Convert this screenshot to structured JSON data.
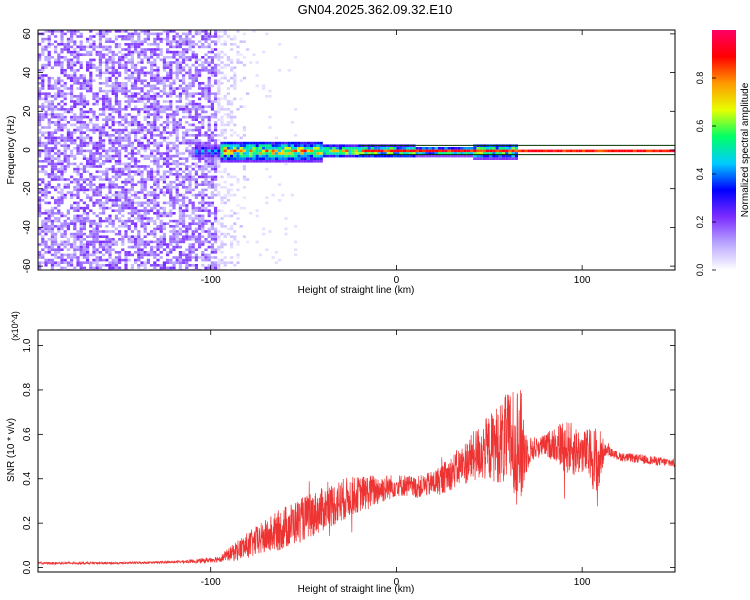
{
  "figure": {
    "title": "GN04.2025.362.09.32.E10"
  },
  "chart_data": [
    {
      "type": "heatmap",
      "name": "spectrogram",
      "xlabel": "Height of straight line (km)",
      "ylabel": "Frequency (Hz)",
      "xlim": [
        -193,
        150
      ],
      "ylim": [
        -62,
        62
      ],
      "xticks": [
        -100,
        0,
        100
      ],
      "yticks": [
        -60,
        -40,
        -20,
        0,
        20,
        40,
        60
      ],
      "colorbar": {
        "label": "Normalized spectral amplitude",
        "range": [
          0,
          1
        ],
        "ticks": [
          "0.0",
          "0.2",
          "0.4",
          "0.6",
          "0.8"
        ],
        "tick_values": [
          0.0,
          0.2,
          0.4,
          0.6,
          0.8
        ],
        "colormap": [
          "#ffffff",
          "#b9a6ff",
          "#7b2cff",
          "#0000ff",
          "#00ccff",
          "#00ff66",
          "#e6ff00",
          "#ff9900",
          "#ff0000",
          "#ff0066"
        ]
      },
      "regions": [
        {
          "description": "broadband noise",
          "x_range": [
            -193,
            -97
          ],
          "freq_range": [
            -62,
            62
          ],
          "level": 0.15
        },
        {
          "description": "fading noise",
          "x_range": [
            -97,
            -80
          ],
          "freq_range": [
            -62,
            62
          ],
          "level": 0.06
        },
        {
          "description": "signal band",
          "x_range": [
            -110,
            65
          ],
          "freq_range": [
            -5,
            5
          ],
          "level": 0.55
        },
        {
          "description": "narrow carrier line",
          "x_range": [
            -20,
            150
          ],
          "freq_range": [
            -1,
            1
          ],
          "level": 0.95
        }
      ]
    },
    {
      "type": "line",
      "name": "snr",
      "xlabel": "Height of straight line (km)",
      "ylabel": "SNR (10 * v/v)",
      "yscale_label": "(x10^4)",
      "xlim": [
        -193,
        150
      ],
      "ylim": [
        -0.02,
        1.07
      ],
      "xticks": [
        -100,
        0,
        100
      ],
      "yticks": [
        "0.0",
        "0.2",
        "0.4",
        "0.6",
        "0.8",
        "1.0"
      ],
      "ytick_values": [
        0.0,
        0.2,
        0.4,
        0.6,
        0.8,
        1.0
      ],
      "series": [
        {
          "color": "#ee3333",
          "x": [
            -193,
            -150,
            -120,
            -105,
            -95,
            -90,
            -85,
            -80,
            -75,
            -70,
            -65,
            -60,
            -55,
            -50,
            -45,
            -40,
            -35,
            -30,
            -25,
            -20,
            -15,
            -10,
            -5,
            0,
            5,
            10,
            15,
            20,
            25,
            30,
            35,
            40,
            45,
            50,
            55,
            60,
            63,
            65,
            68,
            70,
            72,
            75,
            80,
            85,
            90,
            95,
            100,
            105,
            108,
            110,
            112,
            115,
            120,
            130,
            140,
            150
          ],
          "y": [
            0.02,
            0.02,
            0.025,
            0.03,
            0.04,
            0.06,
            0.08,
            0.1,
            0.12,
            0.14,
            0.16,
            0.18,
            0.2,
            0.22,
            0.24,
            0.26,
            0.28,
            0.3,
            0.32,
            0.33,
            0.34,
            0.35,
            0.36,
            0.37,
            0.37,
            0.36,
            0.37,
            0.38,
            0.4,
            0.43,
            0.46,
            0.49,
            0.52,
            0.54,
            0.56,
            0.57,
            0.57,
            0.56,
            0.53,
            0.52,
            0.53,
            0.54,
            0.55,
            0.56,
            0.55,
            0.53,
            0.52,
            0.51,
            0.45,
            0.5,
            0.53,
            0.52,
            0.5,
            0.49,
            0.48,
            0.47
          ],
          "noise_amp": [
            0.005,
            0.005,
            0.005,
            0.01,
            0.015,
            0.03,
            0.05,
            0.06,
            0.07,
            0.08,
            0.09,
            0.1,
            0.1,
            0.1,
            0.1,
            0.1,
            0.1,
            0.1,
            0.09,
            0.08,
            0.08,
            0.07,
            0.06,
            0.05,
            0.05,
            0.05,
            0.05,
            0.06,
            0.07,
            0.08,
            0.09,
            0.11,
            0.13,
            0.15,
            0.18,
            0.22,
            0.26,
            0.28,
            0.25,
            0.1,
            0.06,
            0.05,
            0.05,
            0.08,
            0.12,
            0.12,
            0.1,
            0.12,
            0.2,
            0.12,
            0.03,
            0.02,
            0.02,
            0.02,
            0.02,
            0.02
          ]
        }
      ]
    }
  ]
}
